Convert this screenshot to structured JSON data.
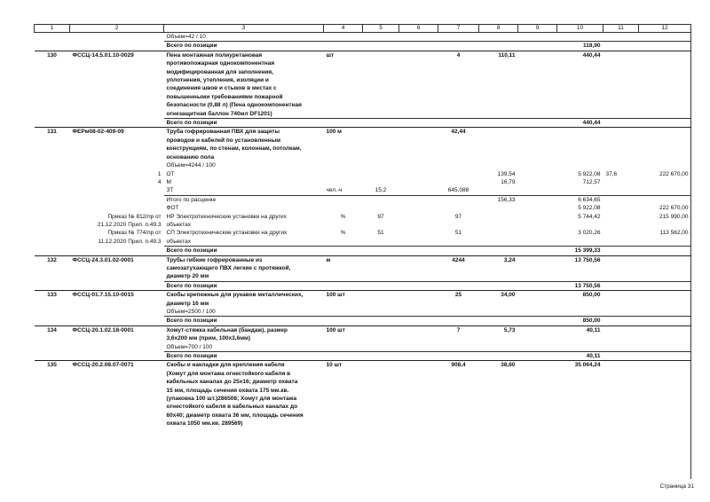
{
  "header_columns": [
    "1",
    "2",
    "3",
    "4",
    "5",
    "6",
    "7",
    "8",
    "9",
    "10",
    "11",
    "12"
  ],
  "rows": [
    {
      "kind": "sub",
      "cells": {
        "3": "Объем=42 / 10"
      }
    },
    {
      "kind": "total",
      "cells": {
        "3": "Всего по позиции",
        "10": "118,90"
      }
    },
    {
      "kind": "item",
      "cells": {
        "1": "130",
        "2": "ФССЦ-14.5.01.10-0029",
        "3": "Пена монтажная полиуретановая\nпротивопожарная однокомпонентная\nмодифицированная для заполнения,\nуплотнения, утепления, изоляции и\nсоединения швов и стыков в местах с\nповышенными требованиями пожарной\nбезопасности (0,88 л) (Пена однокомпонентная\nогнезащитная баллон 740мл DF1201)\n ",
        "4": "шт",
        "7": "4",
        "8": "110,11",
        "10": "440,44"
      }
    },
    {
      "kind": "total",
      "cells": {
        "3": "Всего по позиции",
        "10": "440,44"
      }
    },
    {
      "kind": "item",
      "cells": {
        "1": "131",
        "2": "ФЕРм08-02-409-09",
        "3": "Труба гофрированная ПВХ для защиты\nпроводов и кабелей по установленным\nконструкциям, по стенам, колоннам, потолкам,\nоснованию пола",
        "4": "100 м",
        "7": "42,44"
      }
    },
    {
      "kind": "sub",
      "cells": {
        "3": "Объем=4244 / 100"
      }
    },
    {
      "kind": "sub",
      "cells": {
        "2": "1",
        "3": "ОТ",
        "8": "139,54",
        "10": "5 922,08",
        "11": "37,6",
        "12": "222 670,00"
      }
    },
    {
      "kind": "sub",
      "cells": {
        "2": "4",
        "3": "М",
        "8": "16,79",
        "10": "712,57"
      }
    },
    {
      "kind": "sub",
      "cells": {
        "3": "ЗТ",
        "4": "чел.-ч",
        "5": "15,2",
        "7": "645,088"
      }
    },
    {
      "kind": "subtotal",
      "cells": {
        "3": "Итого по расценке",
        "8": "156,33",
        "10": "6 634,65"
      }
    },
    {
      "kind": "sub",
      "cells": {
        "3": "ФОТ",
        "10": "5 922,08",
        "12": "222 670,00"
      }
    },
    {
      "kind": "sub",
      "cells": {
        "2": "Приказ № 812/пр от\n21.12.2020 Прил. п.49.3",
        "3": "НР Электротехнические установки на других\nобъектах",
        "4": "%",
        "5": "97",
        "7": "97",
        "10": "5 744,42",
        "12": "215 990,00"
      }
    },
    {
      "kind": "sub",
      "cells": {
        "2": "Приказ № 774/пр от\n11.12.2020 Прил. п.49.3",
        "3": "СП Электротехнические установки на других\nобъектах",
        "4": "%",
        "5": "51",
        "7": "51",
        "10": "3 020,26",
        "12": "113 562,00"
      }
    },
    {
      "kind": "total",
      "cells": {
        "3": "Всего по позиции",
        "10": "15 399,33"
      }
    },
    {
      "kind": "item",
      "cells": {
        "1": "132",
        "2": "ФССЦ-24.3.01.02-0001",
        "3": "Трубы гибкие гофрированные из\nсамозатухающего ПВХ легкие с протяжкой,\nдиаметр 20 мм",
        "4": "м",
        "7": "4244",
        "8": "3,24",
        "10": "13 750,56"
      }
    },
    {
      "kind": "total",
      "cells": {
        "3": "Всего по позиции",
        "10": "13 750,56"
      }
    },
    {
      "kind": "item",
      "cells": {
        "1": "133",
        "2": "ФССЦ-01.7.15.10-0015",
        "3": "Скобы крепежные для рукавов металлических,\nдиаметр 16 мм",
        "4": "100 шт",
        "7": "25",
        "8": "34,00",
        "10": "850,00"
      }
    },
    {
      "kind": "sub",
      "cells": {
        "3": "Объем=2500 / 100"
      }
    },
    {
      "kind": "total",
      "cells": {
        "3": "Всего по позиции",
        "10": "850,00"
      }
    },
    {
      "kind": "item",
      "cells": {
        "1": "134",
        "2": "ФССЦ-20.1.02.18-0001",
        "3": "Хомут-стяжка кабельная (бандаж), размер\n3,6х200 мм (прим, 100х3,6мм)",
        "4": "100 шт",
        "7": "7",
        "8": "5,73",
        "10": "40,11"
      }
    },
    {
      "kind": "sub",
      "cells": {
        "3": "Объем=700 / 100"
      }
    },
    {
      "kind": "total",
      "cells": {
        "3": "Всего по позиции",
        "10": "40,11"
      }
    },
    {
      "kind": "item",
      "cells": {
        "1": "135",
        "2": "ФССЦ-20.2.08.07-0071",
        "3": "Скобы и накладки для крепления кабеля\n(Хомут для монтажа огнестойкого кабеля в\nкабельных каналах до 25х16; диаметр охвата\n15 мм, площадь сечения охвата 175 мм.кв.\n(упаковка 100 шт.)286508; Хомут для монтажа\nогнестойкого кабеля в кабельных каналах до\n60х40; диаметр охвата 36 мм, площадь сечения\nохвата 1050 мм.кв. 289569)",
        "4": "10 шт",
        "7": "908,4",
        "8": "38,60",
        "10": "35 064,24"
      }
    }
  ],
  "footer": {
    "page_label": "Страница 31"
  }
}
